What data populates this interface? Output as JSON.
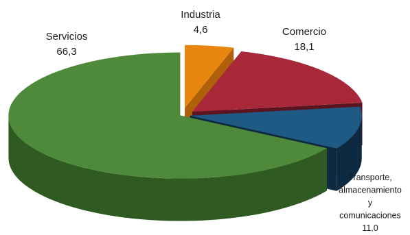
{
  "chart_data": {
    "type": "pie",
    "style": "3d-exploded",
    "slices": [
      {
        "label": "Industria",
        "value": 4.6,
        "value_label": "4,6",
        "color": "#e8860f",
        "side_color": "#b0600a"
      },
      {
        "label": "Comercio",
        "value": 18.1,
        "value_label": "18,1",
        "color": "#a8283a",
        "side_color": "#5c1520"
      },
      {
        "label_lines": [
          "Transporte,",
          "almacenamiento",
          "y",
          "comunicaciones"
        ],
        "value": 11.0,
        "value_label": "11,0",
        "color": "#1f5a85",
        "side_color": "#0e2a40"
      },
      {
        "label": "Servicios",
        "value": 66.3,
        "value_label": "66,3",
        "color": "#4e8a3a",
        "side_color": "#2f5a22"
      }
    ]
  }
}
